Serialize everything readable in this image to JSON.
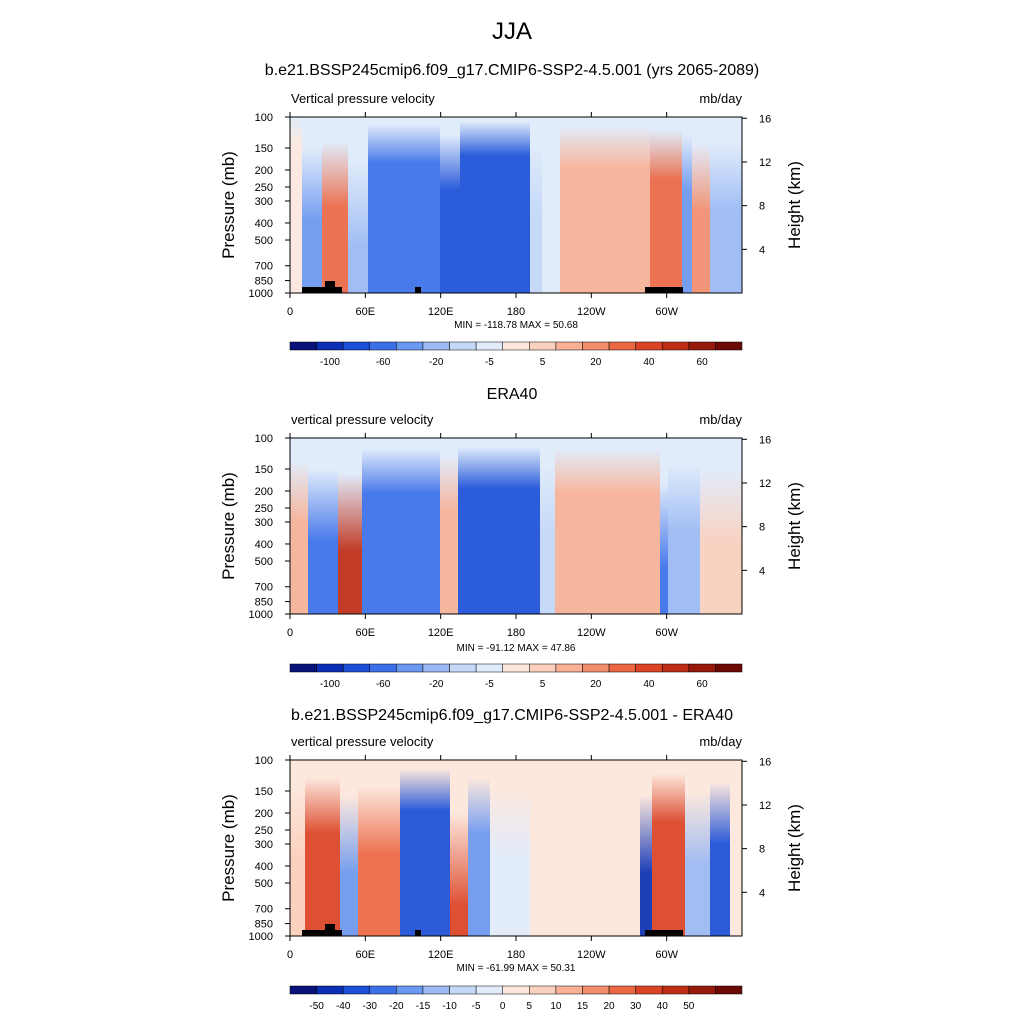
{
  "main_title": "JJA",
  "colorbar_a": {
    "labels": [
      "-100",
      "-60",
      "-20",
      "-5",
      "5",
      "20",
      "40",
      "60"
    ],
    "colors": [
      "#08137a",
      "#0a2fb4",
      "#1b4fd8",
      "#3c70ea",
      "#6b98f0",
      "#9ab9f4",
      "#c4d8f8",
      "#e1ecfb",
      "#fde8de",
      "#fbd0bc",
      "#f8b195",
      "#f38d6c",
      "#ec6844",
      "#db4325",
      "#bf2d15",
      "#96190b",
      "#6e0a05"
    ]
  },
  "colorbar_b": {
    "labels": [
      "-50",
      "-40",
      "-30",
      "-20",
      "-15",
      "-10",
      "-5",
      "0",
      "5",
      "10",
      "15",
      "20",
      "30",
      "40",
      "50"
    ],
    "colors": [
      "#08137a",
      "#0a2fb4",
      "#1b4fd8",
      "#3c70ea",
      "#6b98f0",
      "#9ab9f4",
      "#c4d8f8",
      "#e1ecfb",
      "#fde8de",
      "#fbd0bc",
      "#f8b195",
      "#f38d6c",
      "#ec6844",
      "#db4325",
      "#bf2d15",
      "#96190b",
      "#6e0a05"
    ]
  },
  "panels": [
    {
      "title": "b.e21.BSSP245cmip6.f09_g17.CMIP6-SSP2-4.5.001 (yrs 2065-2089)",
      "left_string": "Vertical pressure velocity",
      "right_string": "mb/day",
      "min_max": "MIN = -118.78  MAX =  50.68",
      "colorbar": "a"
    },
    {
      "title": "ERA40",
      "left_string": "vertical pressure velocity",
      "right_string": "mb/day",
      "min_max": "MIN = -91.12  MAX =  47.86",
      "colorbar": "a"
    },
    {
      "title": "b.e21.BSSP245cmip6.f09_g17.CMIP6-SSP2-4.5.001 - ERA40",
      "left_string": "vertical pressure velocity",
      "right_string": "mb/day",
      "min_max": "MIN = -61.99  MAX =  50.31",
      "colorbar": "b"
    }
  ],
  "chart_data": [
    {
      "type": "heatmap",
      "title": "b.e21.BSSP245cmip6.f09_g17.CMIP6-SSP2-4.5.001 (yrs 2065-2089)",
      "xlabel": "",
      "ylabel": "Pressure (mb)",
      "ylabel_right": "Height (km)",
      "x_ticks": [
        "0",
        "60E",
        "120E",
        "180",
        "120W",
        "60W"
      ],
      "y_ticks": [
        "100",
        "150",
        "200",
        "250",
        "300",
        "400",
        "500",
        "700",
        "850",
        "1000"
      ],
      "y_ticks_right": [
        "4",
        "8",
        "12",
        "16"
      ],
      "xlim": [
        0,
        360
      ],
      "ylim": [
        1000,
        100
      ],
      "y_scale": "log",
      "units": "mb/day",
      "min": -118.78,
      "max": 50.68
    },
    {
      "type": "heatmap",
      "title": "ERA40",
      "xlabel": "",
      "ylabel": "Pressure (mb)",
      "ylabel_right": "Height (km)",
      "x_ticks": [
        "0",
        "60E",
        "120E",
        "180",
        "120W",
        "60W"
      ],
      "y_ticks": [
        "100",
        "150",
        "200",
        "250",
        "300",
        "400",
        "500",
        "700",
        "850",
        "1000"
      ],
      "y_ticks_right": [
        "4",
        "8",
        "12",
        "16"
      ],
      "xlim": [
        0,
        360
      ],
      "ylim": [
        1000,
        100
      ],
      "y_scale": "log",
      "units": "mb/day",
      "min": -91.12,
      "max": 47.86
    },
    {
      "type": "heatmap",
      "title": "b.e21.BSSP245cmip6.f09_g17.CMIP6-SSP2-4.5.001 - ERA40",
      "xlabel": "",
      "ylabel": "Pressure (mb)",
      "ylabel_right": "Height (km)",
      "x_ticks": [
        "0",
        "60E",
        "120E",
        "180",
        "120W",
        "60W"
      ],
      "y_ticks": [
        "100",
        "150",
        "200",
        "250",
        "300",
        "400",
        "500",
        "700",
        "850",
        "1000"
      ],
      "y_ticks_right": [
        "4",
        "8",
        "12",
        "16"
      ],
      "xlim": [
        0,
        360
      ],
      "ylim": [
        1000,
        100
      ],
      "y_scale": "log",
      "units": "mb/day",
      "min": -61.99,
      "max": 50.31
    }
  ]
}
